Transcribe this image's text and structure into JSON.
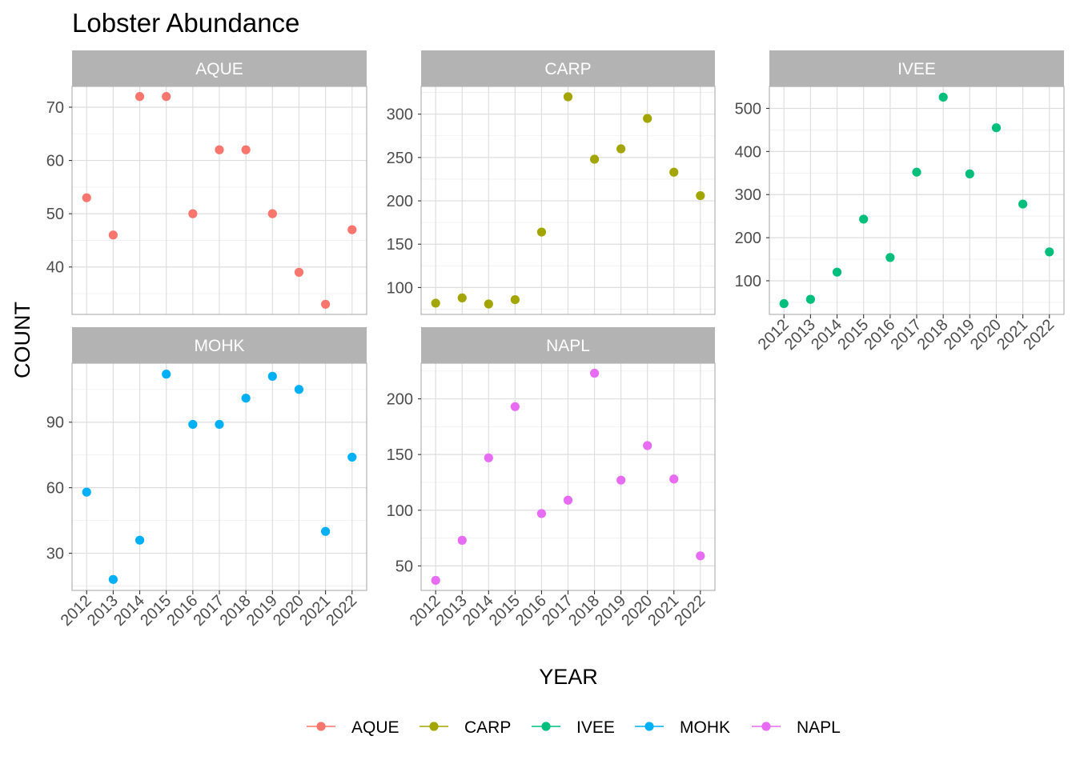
{
  "chart_data": {
    "type": "scatter",
    "title": "Lobster Abundance",
    "xlabel": "YEAR",
    "ylabel": "COUNT",
    "x": [
      2012,
      2013,
      2014,
      2015,
      2016,
      2017,
      2018,
      2019,
      2020,
      2021,
      2022
    ],
    "x_tick_labels": [
      "2012",
      "2013",
      "2014",
      "2015",
      "2016",
      "2017",
      "2018",
      "2019",
      "2020",
      "2021",
      "2022"
    ],
    "facet_by": "site",
    "scales": "free_y",
    "grid": true,
    "legend_position": "bottom",
    "series": [
      {
        "name": "AQUE",
        "color": "#F8766D",
        "values": [
          53,
          46,
          72,
          72,
          50,
          62,
          62,
          50,
          39,
          33,
          47
        ],
        "ylim": [
          31.1,
          73.9
        ],
        "y_ticks": [
          40,
          50,
          60,
          70
        ],
        "y_tick_labels": [
          "40",
          "50",
          "60",
          "70"
        ]
      },
      {
        "name": "CARP",
        "color": "#A3A500",
        "values": [
          82,
          88,
          81,
          86,
          164,
          320,
          248,
          260,
          295,
          233,
          206
        ],
        "ylim": [
          69,
          332
        ],
        "y_ticks": [
          100,
          150,
          200,
          250,
          300
        ],
        "y_tick_labels": [
          "100",
          "150",
          "200",
          "250",
          "300"
        ]
      },
      {
        "name": "IVEE",
        "color": "#00BF7D",
        "values": [
          47,
          57,
          120,
          243,
          154,
          352,
          526,
          348,
          455,
          278,
          167
        ],
        "ylim": [
          22,
          551
        ],
        "y_ticks": [
          100,
          200,
          300,
          400,
          500
        ],
        "y_tick_labels": [
          "100",
          "200",
          "300",
          "400",
          "500"
        ]
      },
      {
        "name": "MOHK",
        "color": "#00B0F6",
        "values": [
          58,
          18,
          36,
          112,
          89,
          89,
          101,
          111,
          105,
          40,
          74
        ],
        "ylim": [
          13,
          117
        ],
        "y_ticks": [
          30,
          60,
          90
        ],
        "y_tick_labels": [
          "30",
          "60",
          "90"
        ]
      },
      {
        "name": "NAPL",
        "color": "#E76BF3",
        "values": [
          37,
          73,
          147,
          193,
          97,
          109,
          223,
          127,
          158,
          128,
          59
        ],
        "ylim": [
          28,
          232
        ],
        "y_ticks": [
          50,
          100,
          150,
          200
        ],
        "y_tick_labels": [
          "50",
          "100",
          "150",
          "200"
        ]
      }
    ]
  }
}
